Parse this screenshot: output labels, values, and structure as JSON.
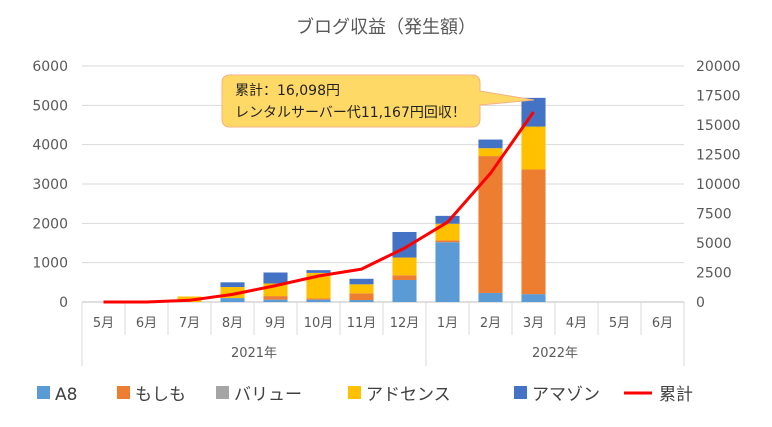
{
  "chart_data": {
    "type": "bar",
    "title": "ブログ収益（発生額）",
    "categories": [
      "5月",
      "6月",
      "7月",
      "8月",
      "9月",
      "10月",
      "11月",
      "12月",
      "1月",
      "2月",
      "3月",
      "4月",
      "5月",
      "6月"
    ],
    "year_groups": [
      {
        "label": "2021年",
        "span": 8
      },
      {
        "label": "2022年",
        "span": 6
      }
    ],
    "stacked": true,
    "ylim": [
      0,
      6000
    ],
    "y_ticks": [
      "0",
      "1000",
      "2000",
      "3000",
      "4000",
      "5000",
      "6000"
    ],
    "y2lim": [
      0,
      20000
    ],
    "y2_ticks": [
      "0",
      "2500",
      "5000",
      "7500",
      "10000",
      "12500",
      "15000",
      "17500",
      "20000"
    ],
    "grid": true,
    "legend_position": "bottom",
    "series": [
      {
        "name": "A8",
        "color": "#5B9BD5",
        "values": [
          0,
          0,
          0,
          100,
          60,
          60,
          50,
          560,
          1520,
          230,
          200,
          0,
          0,
          0
        ]
      },
      {
        "name": "もしも",
        "color": "#ED7D31",
        "values": [
          0,
          0,
          0,
          0,
          90,
          30,
          170,
          120,
          50,
          3480,
          3170,
          0,
          0,
          0
        ]
      },
      {
        "name": "バリュー",
        "color": "#A5A5A5",
        "values": [
          0,
          0,
          0,
          0,
          0,
          0,
          0,
          0,
          0,
          0,
          0,
          0,
          0,
          0
        ]
      },
      {
        "name": "アドセンス",
        "color": "#FFC000",
        "values": [
          0,
          0,
          140,
          280,
          320,
          650,
          230,
          450,
          420,
          200,
          1090,
          0,
          0,
          0
        ]
      },
      {
        "name": "アマゾン",
        "color": "#4472C4",
        "values": [
          0,
          0,
          0,
          120,
          280,
          70,
          140,
          650,
          200,
          220,
          730,
          0,
          0,
          0
        ]
      }
    ],
    "line_series": {
      "name": "累計",
      "color": "#FF0000",
      "axis": "right",
      "values": [
        0,
        0,
        140,
        640,
        1390,
        2200,
        2790,
        4570,
        6760,
        10910,
        16098,
        null,
        null,
        null
      ]
    },
    "annotation": {
      "lines": [
        "累計：16,098円",
        "レンタルサーバー代11,167円回収！"
      ]
    }
  }
}
